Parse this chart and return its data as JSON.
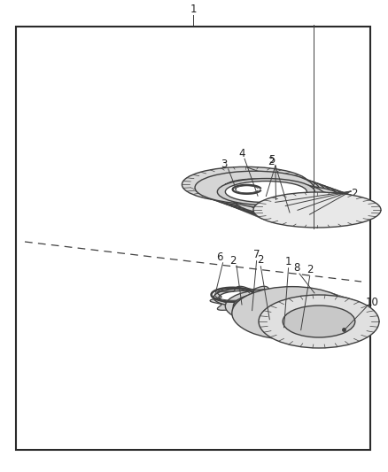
{
  "bg_color": "#ffffff",
  "line_color": "#404040",
  "fig_width": 4.38,
  "fig_height": 5.33,
  "dpi": 100,
  "label_color": "#222222",
  "label_fs": 8.5
}
